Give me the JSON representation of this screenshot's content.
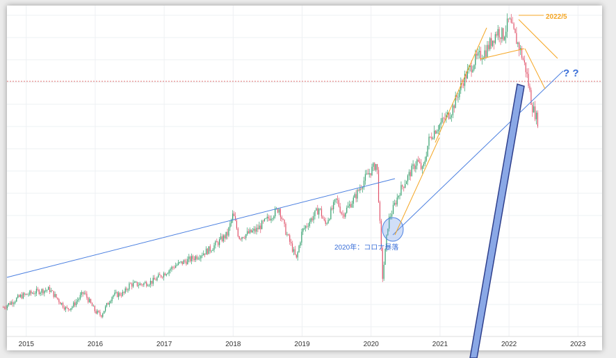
{
  "chart_data": {
    "type": "candlestick",
    "title": "",
    "xlabel": "",
    "ylabel": "",
    "x_ticks": [
      "2015",
      "2016",
      "2017",
      "2018",
      "2019",
      "2020",
      "2021",
      "2022",
      "2023"
    ],
    "grid": true,
    "legend": "none",
    "colors": {
      "up": "#2f9e6a",
      "down": "#e0526a",
      "trend_blue": "#4a7fe0",
      "trend_orange": "#f5a623",
      "ref_line": "#e57373",
      "arrow_fill": "#8aa8e6",
      "arrow_stroke": "#2e3f8c",
      "label_orange": "#f5a623",
      "label_blue": "#3a6fd8"
    },
    "series": [
      {
        "values_x": [
          "2014-09",
          "2014-12",
          "2015-03",
          "2015-05",
          "2015-08",
          "2015-09",
          "2015-11",
          "2016-01",
          "2016-02",
          "2016-04",
          "2016-06",
          "2016-07",
          "2016-09",
          "2016-11",
          "2016-12",
          "2017-03",
          "2017-06",
          "2017-09",
          "2017-12",
          "2018-01",
          "2018-02",
          "2018-05",
          "2018-09",
          "2018-10",
          "2018-12",
          "2019-01",
          "2019-04",
          "2019-05",
          "2019-07",
          "2019-08",
          "2019-10",
          "2019-12",
          "2020-02",
          "2020-03",
          "2020-04",
          "2020-06",
          "2020-08",
          "2020-09",
          "2020-10",
          "2020-11",
          "2020-12",
          "2021-03",
          "2021-05",
          "2021-07",
          "2021-09",
          "2021-11",
          "2021-12",
          "2022-01",
          "2022-03",
          "2022-04",
          "2022-05",
          "2022-06"
        ],
        "values_y": [
          1940,
          2050,
          2100,
          2120,
          1920,
          1950,
          2090,
          1900,
          1860,
          2060,
          2080,
          2170,
          2170,
          2200,
          2240,
          2360,
          2430,
          2520,
          2670,
          2870,
          2640,
          2710,
          2930,
          2720,
          2420,
          2700,
          2930,
          2760,
          3020,
          2860,
          3020,
          3230,
          3380,
          2240,
          2800,
          3100,
          3300,
          3400,
          3300,
          3600,
          3700,
          3900,
          4200,
          4400,
          4500,
          4700,
          4650,
          4800,
          4500,
          4300,
          3950,
          3800
        ]
      }
    ],
    "annotations": {
      "corona_label": "2020年：コロナ暴落",
      "peak_label": "2022/5",
      "question_label": "? ?"
    }
  }
}
